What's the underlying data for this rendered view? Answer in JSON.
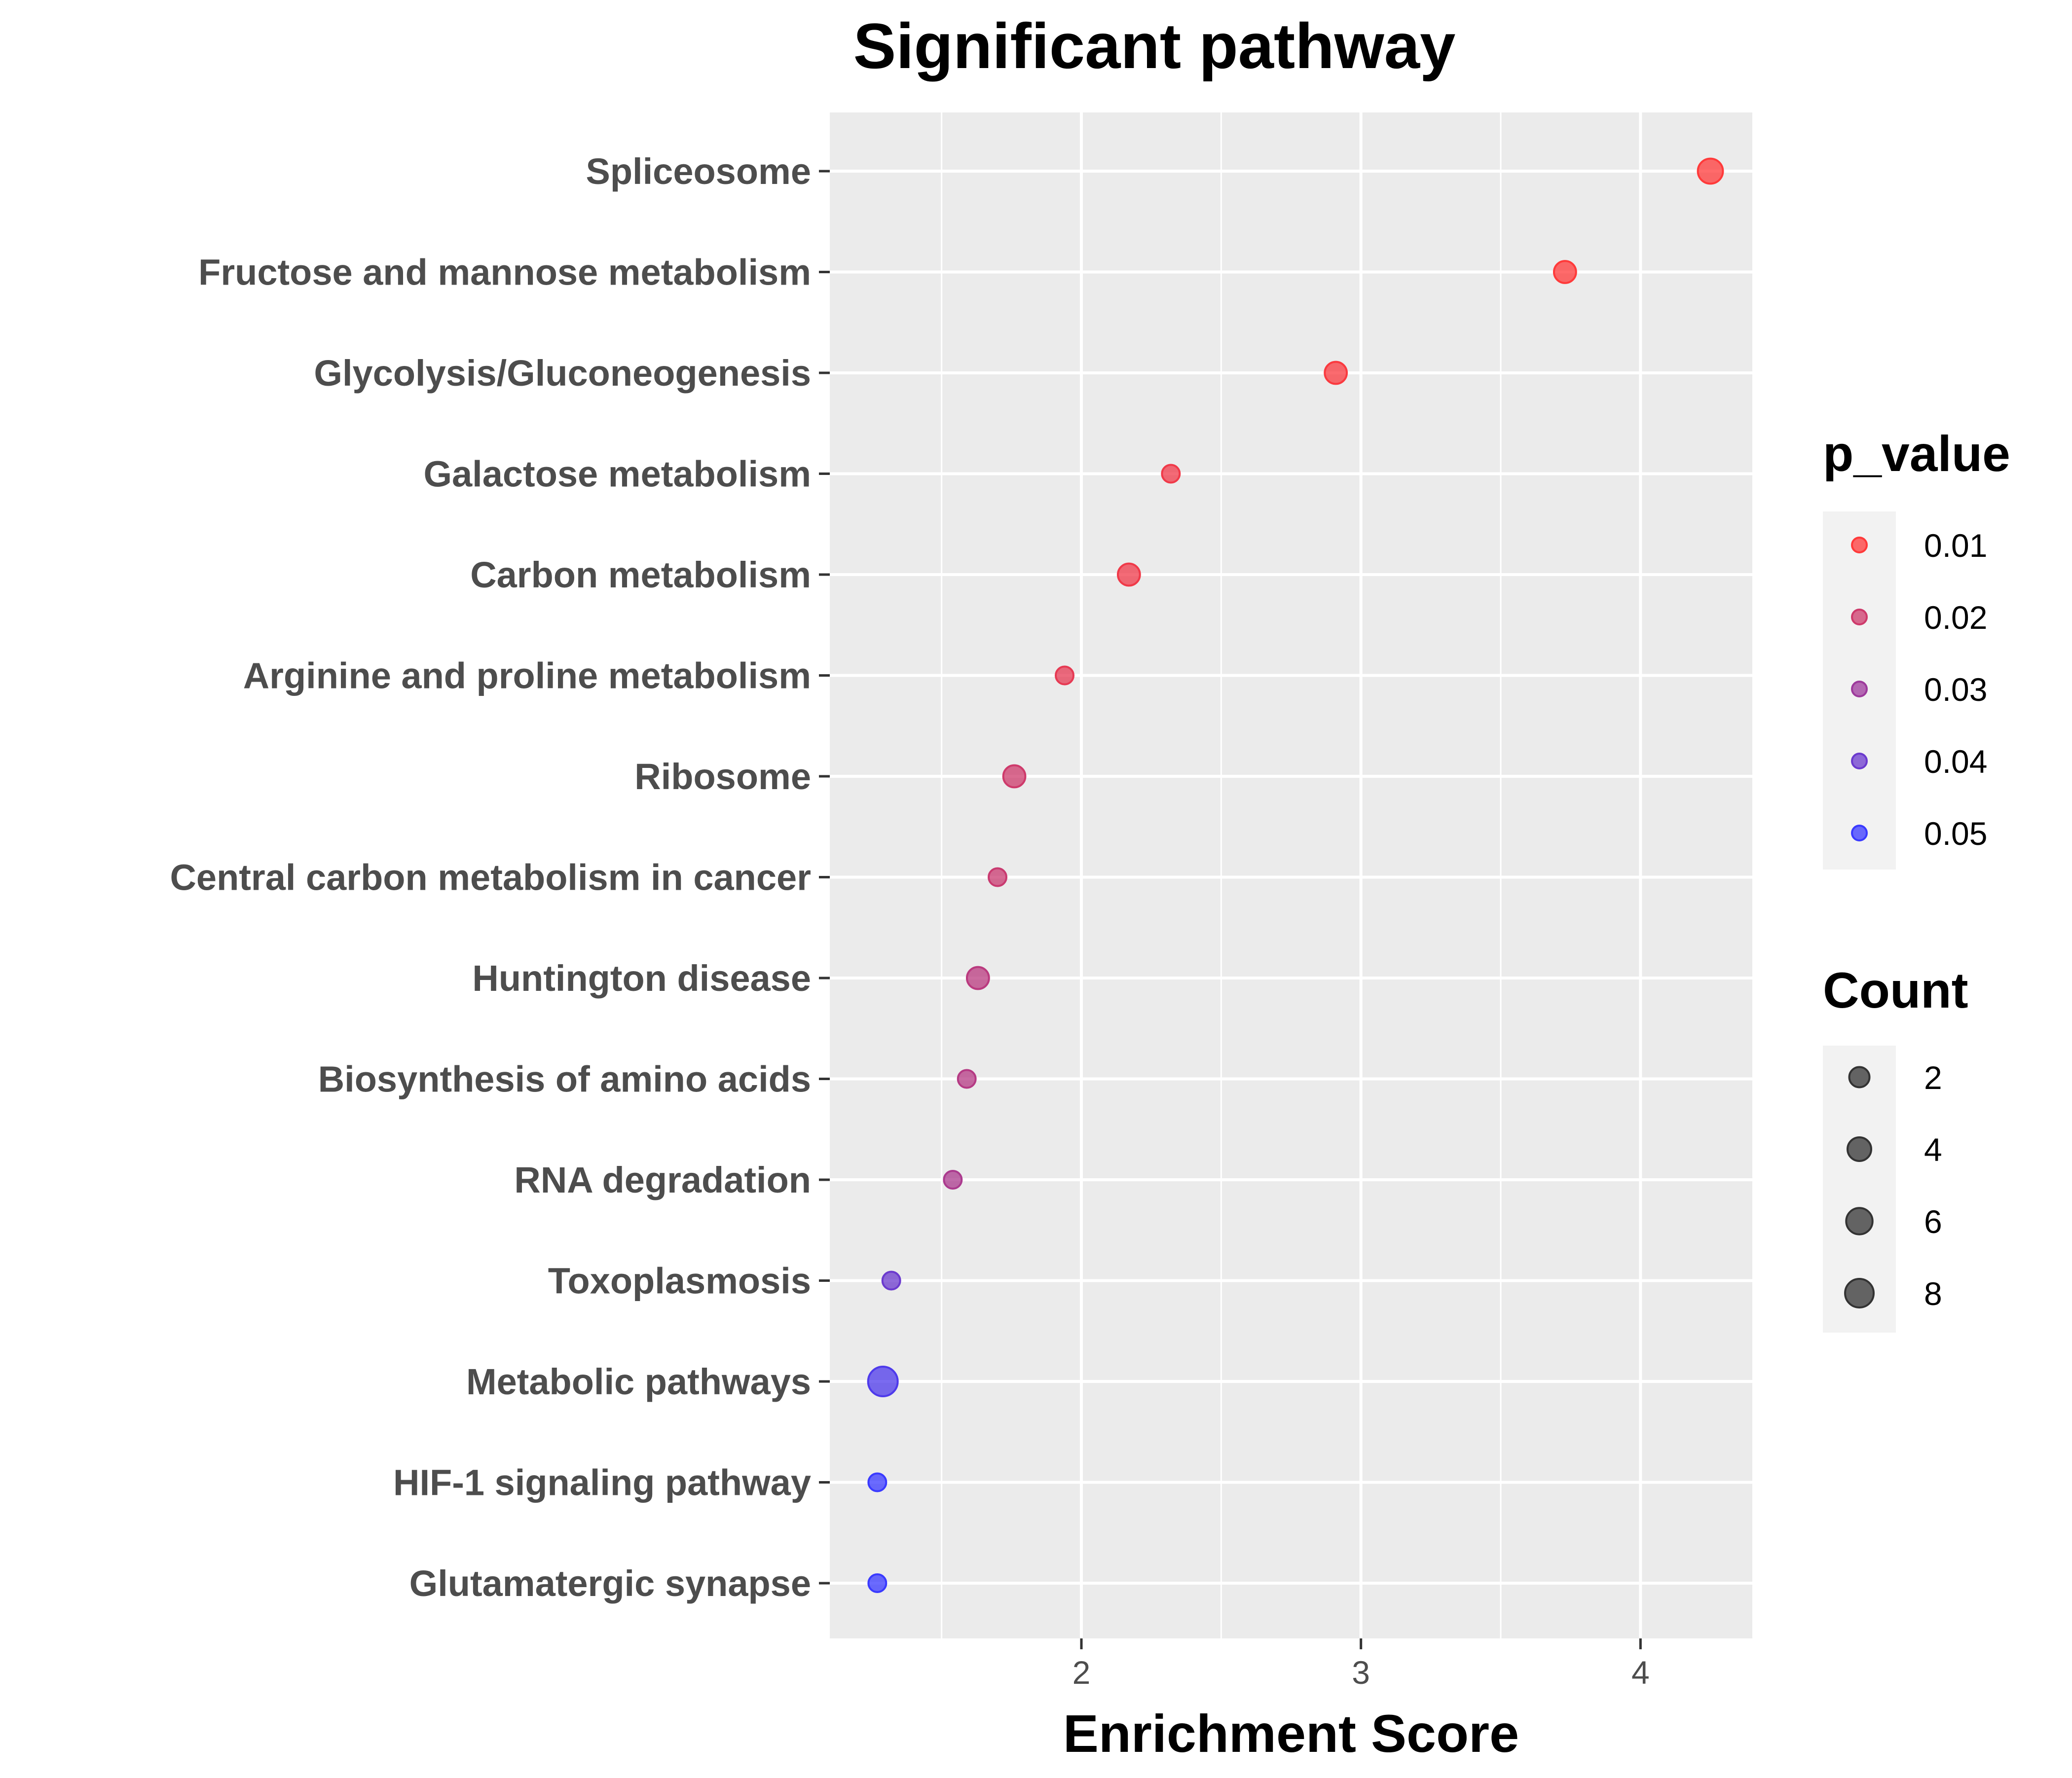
{
  "chart_data": {
    "type": "scatter",
    "title": "Significant pathway",
    "xlabel": "Enrichment Score",
    "ylabel": "",
    "xlim": [
      1.1,
      4.4
    ],
    "x_ticks": [
      "2",
      "3",
      "4"
    ],
    "grid": true,
    "legend_position": "right",
    "pathways": [
      {
        "name": "Spliceosome",
        "x": 4.25,
        "count": 5,
        "p_value": 0.01
      },
      {
        "name": "Fructose and mannose metabolism",
        "x": 3.73,
        "count": 3,
        "p_value": 0.01
      },
      {
        "name": "Glycolysis/Gluconeogenesis",
        "x": 2.91,
        "count": 3,
        "p_value": 0.011
      },
      {
        "name": "Galactose metabolism",
        "x": 2.32,
        "count": 1,
        "p_value": 0.013
      },
      {
        "name": "Carbon metabolism",
        "x": 2.17,
        "count": 3,
        "p_value": 0.013
      },
      {
        "name": "Arginine and proline metabolism",
        "x": 1.94,
        "count": 1,
        "p_value": 0.015
      },
      {
        "name": "Ribosome",
        "x": 1.76,
        "count": 3,
        "p_value": 0.02
      },
      {
        "name": "Central carbon metabolism in cancer",
        "x": 1.7,
        "count": 1,
        "p_value": 0.021
      },
      {
        "name": "Huntington disease",
        "x": 1.63,
        "count": 3,
        "p_value": 0.024
      },
      {
        "name": "Biosynthesis of amino acids",
        "x": 1.59,
        "count": 1,
        "p_value": 0.025
      },
      {
        "name": "RNA degradation",
        "x": 1.54,
        "count": 1,
        "p_value": 0.027
      },
      {
        "name": "Toxoplasmosis",
        "x": 1.32,
        "count": 1,
        "p_value": 0.04
      },
      {
        "name": "Metabolic pathways",
        "x": 1.29,
        "count": 9,
        "p_value": 0.046
      },
      {
        "name": "HIF-1 signaling pathway",
        "x": 1.27,
        "count": 1,
        "p_value": 0.052
      },
      {
        "name": "Glutamatergic synapse",
        "x": 1.27,
        "count": 1,
        "p_value": 0.053
      }
    ],
    "color_legend": {
      "title": "p_value",
      "entries": [
        {
          "label": "0.01",
          "value": 0.01
        },
        {
          "label": "0.02",
          "value": 0.02
        },
        {
          "label": "0.03",
          "value": 0.03
        },
        {
          "label": "0.04",
          "value": 0.04
        },
        {
          "label": "0.05",
          "value": 0.05
        }
      ],
      "low_color": "#ff3a3a",
      "high_color": "#3a3aff"
    },
    "size_legend": {
      "title": "Count",
      "entries": [
        {
          "label": "2",
          "value": 2
        },
        {
          "label": "4",
          "value": 4
        },
        {
          "label": "6",
          "value": 6
        },
        {
          "label": "8",
          "value": 8
        }
      ]
    },
    "colors": {
      "panel_background": "#ebebeb",
      "grid_line": "#ffffff",
      "axis_text": "#4d4d4d",
      "legend_key_background": "#f2f2f2",
      "size_key_fill": "#333333"
    }
  }
}
